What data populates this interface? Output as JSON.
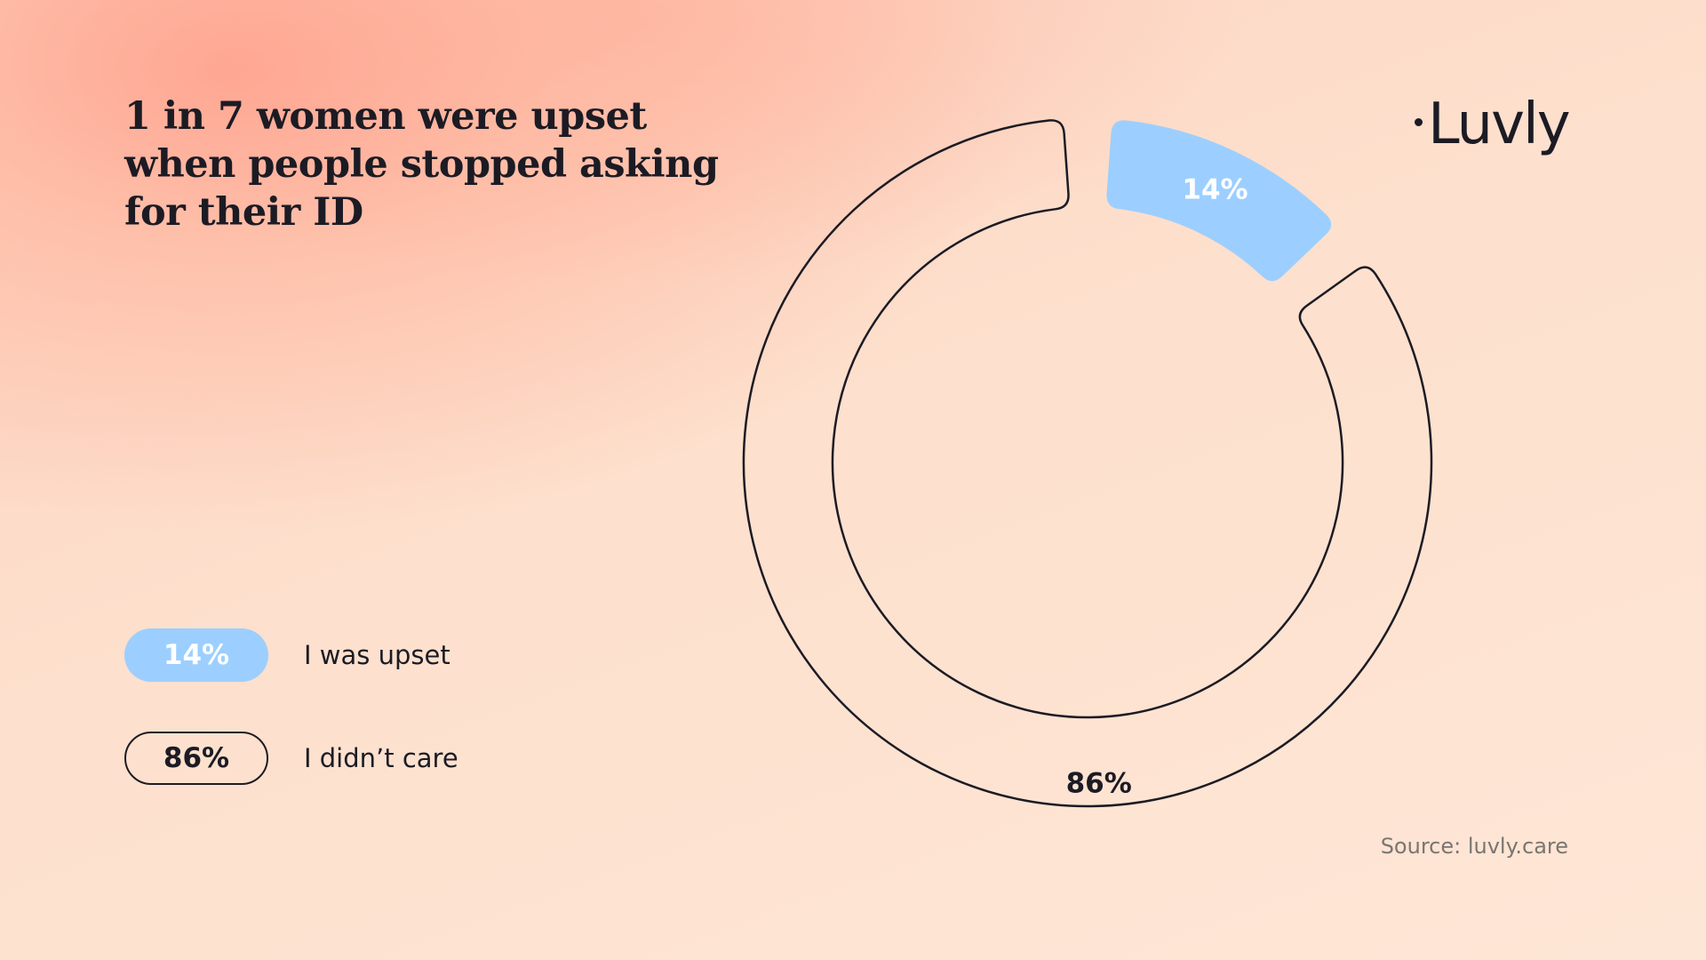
{
  "title": "1 in 7 women were upset when people stopped asking for their ID",
  "logo": "Luvly",
  "source": "Source: luvly.care",
  "colors": {
    "upset": "#9ccfff",
    "outline": "#1c1b24",
    "text_dark": "#1c1b24",
    "text_white": "#ffffff"
  },
  "chart_data": {
    "type": "pie",
    "variant": "donut",
    "series": [
      {
        "name": "I was upset",
        "value": 14,
        "label": "14%",
        "style": "filled"
      },
      {
        "name": "I didn’t care",
        "value": 86,
        "label": "86%",
        "style": "outline"
      }
    ],
    "legend_position": "bottom-left"
  }
}
